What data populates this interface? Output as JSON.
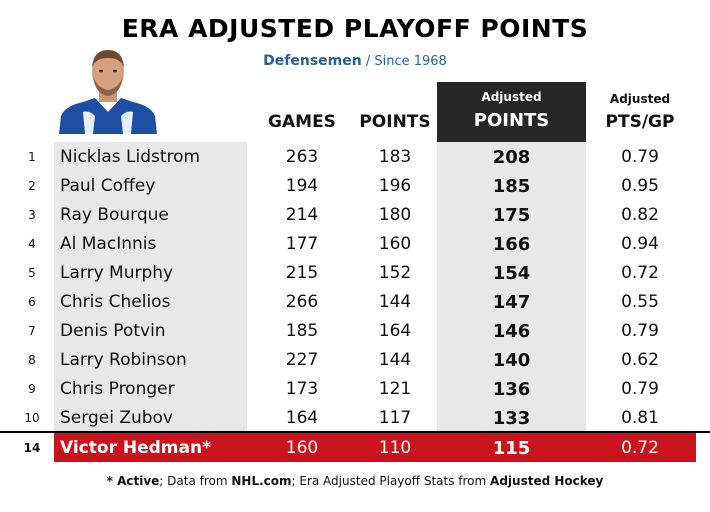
{
  "title": "ERA ADJUSTED PLAYOFF POINTS",
  "subtitle": {
    "main": "Defensemen",
    "sep": " / ",
    "secondary": "Since 1968"
  },
  "colors": {
    "accent_blue": "#2b5f9e",
    "highlight_red": "#c9141e",
    "header_dark": "#262626",
    "band_gray": "#e8e8e8"
  },
  "headers": {
    "games": "GAMES",
    "points": "POINTS",
    "adj_small": "Adjusted",
    "adj_big": "POINTS",
    "pgp_small": "Adjusted",
    "pgp_big": "PTS/GP"
  },
  "footer": {
    "p1": "* Active",
    "p2": "; Data from ",
    "p3": "NHL.com",
    "p4": "; Era Adjusted Playoff Stats from ",
    "p5": "Adjusted Hockey"
  },
  "chart_data": {
    "type": "table",
    "columns": [
      "",
      "",
      "GAMES",
      "POINTS",
      "Adjusted POINTS",
      "Adjusted PTS/GP"
    ],
    "rows": [
      {
        "rank": "1",
        "name": "Nicklas Lidstrom",
        "games": "263",
        "points": "183",
        "adj_points": "208",
        "adj_ptsgp": "0.79"
      },
      {
        "rank": "2",
        "name": "Paul Coffey",
        "games": "194",
        "points": "196",
        "adj_points": "185",
        "adj_ptsgp": "0.95"
      },
      {
        "rank": "3",
        "name": "Ray Bourque",
        "games": "214",
        "points": "180",
        "adj_points": "175",
        "adj_ptsgp": "0.82"
      },
      {
        "rank": "4",
        "name": "Al MacInnis",
        "games": "177",
        "points": "160",
        "adj_points": "166",
        "adj_ptsgp": "0.94"
      },
      {
        "rank": "5",
        "name": "Larry Murphy",
        "games": "215",
        "points": "152",
        "adj_points": "154",
        "adj_ptsgp": "0.72"
      },
      {
        "rank": "6",
        "name": "Chris Chelios",
        "games": "266",
        "points": "144",
        "adj_points": "147",
        "adj_ptsgp": "0.55"
      },
      {
        "rank": "7",
        "name": "Denis Potvin",
        "games": "185",
        "points": "164",
        "adj_points": "146",
        "adj_ptsgp": "0.79"
      },
      {
        "rank": "8",
        "name": "Larry Robinson",
        "games": "227",
        "points": "144",
        "adj_points": "140",
        "adj_ptsgp": "0.62"
      },
      {
        "rank": "9",
        "name": "Chris Pronger",
        "games": "173",
        "points": "121",
        "adj_points": "136",
        "adj_ptsgp": "0.79"
      },
      {
        "rank": "10",
        "name": "Sergei Zubov",
        "games": "164",
        "points": "117",
        "adj_points": "133",
        "adj_ptsgp": "0.81"
      }
    ],
    "highlight_row": {
      "rank": "14",
      "name": "Victor Hedman*",
      "games": "160",
      "points": "110",
      "adj_points": "115",
      "adj_ptsgp": "0.72"
    }
  }
}
